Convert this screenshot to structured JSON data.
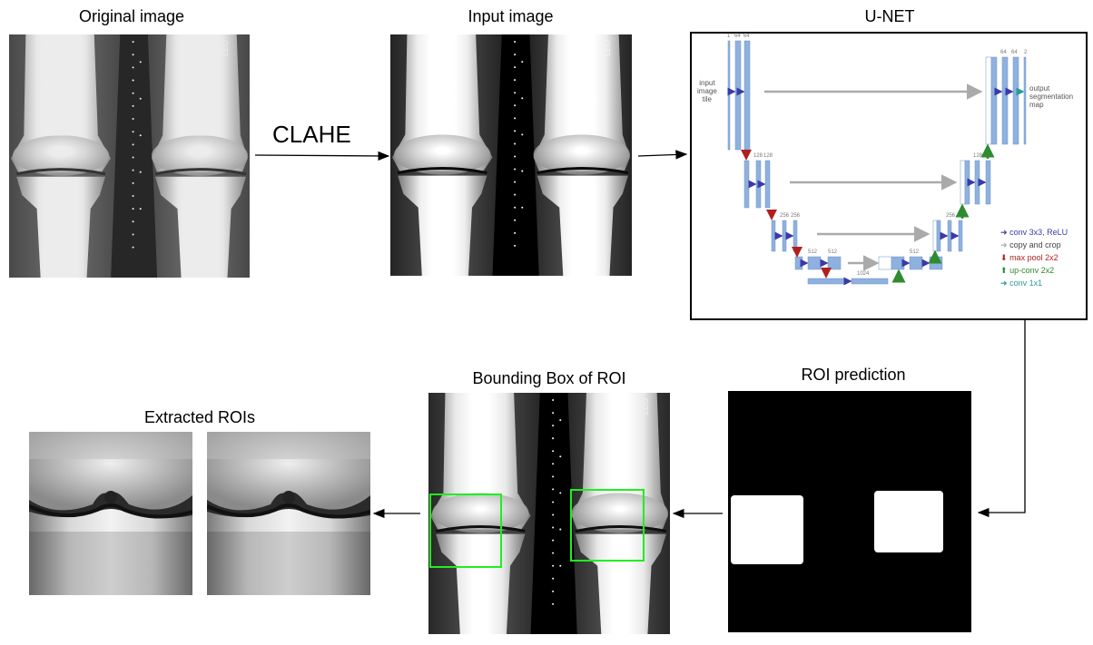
{
  "titles": {
    "original": "Original image",
    "input": "Input image",
    "unet": "U-NET",
    "roi_prediction": "ROI prediction",
    "bbox": "Bounding Box of ROI",
    "extracted": "Extracted ROIs"
  },
  "clahe_label": "CLAHE",
  "xray_marker": "LEO",
  "unet": {
    "input_label": [
      "input",
      "image",
      "tile"
    ],
    "output_label": [
      "output",
      "segmentation",
      "map"
    ],
    "legend": [
      {
        "label": "conv 3x3, ReLU",
        "color": "#3a3aa8"
      },
      {
        "label": "copy and crop",
        "color": "#444444"
      },
      {
        "label": "max pool 2x2",
        "color": "#b02020"
      },
      {
        "label": "up-conv 2x2",
        "color": "#2e8b2e"
      },
      {
        "label": "conv 1x1",
        "color": "#2a9a9a"
      }
    ],
    "channel_labels": [
      "1",
      "64",
      "64",
      "128",
      "128",
      "256",
      "256",
      "512",
      "512",
      "1024",
      "512",
      "256",
      "128",
      "64",
      "64",
      "2"
    ]
  },
  "colors": {
    "roi_box": "#2fdc2f",
    "unet_block": "#8fb1df",
    "arrow": "#000000"
  }
}
